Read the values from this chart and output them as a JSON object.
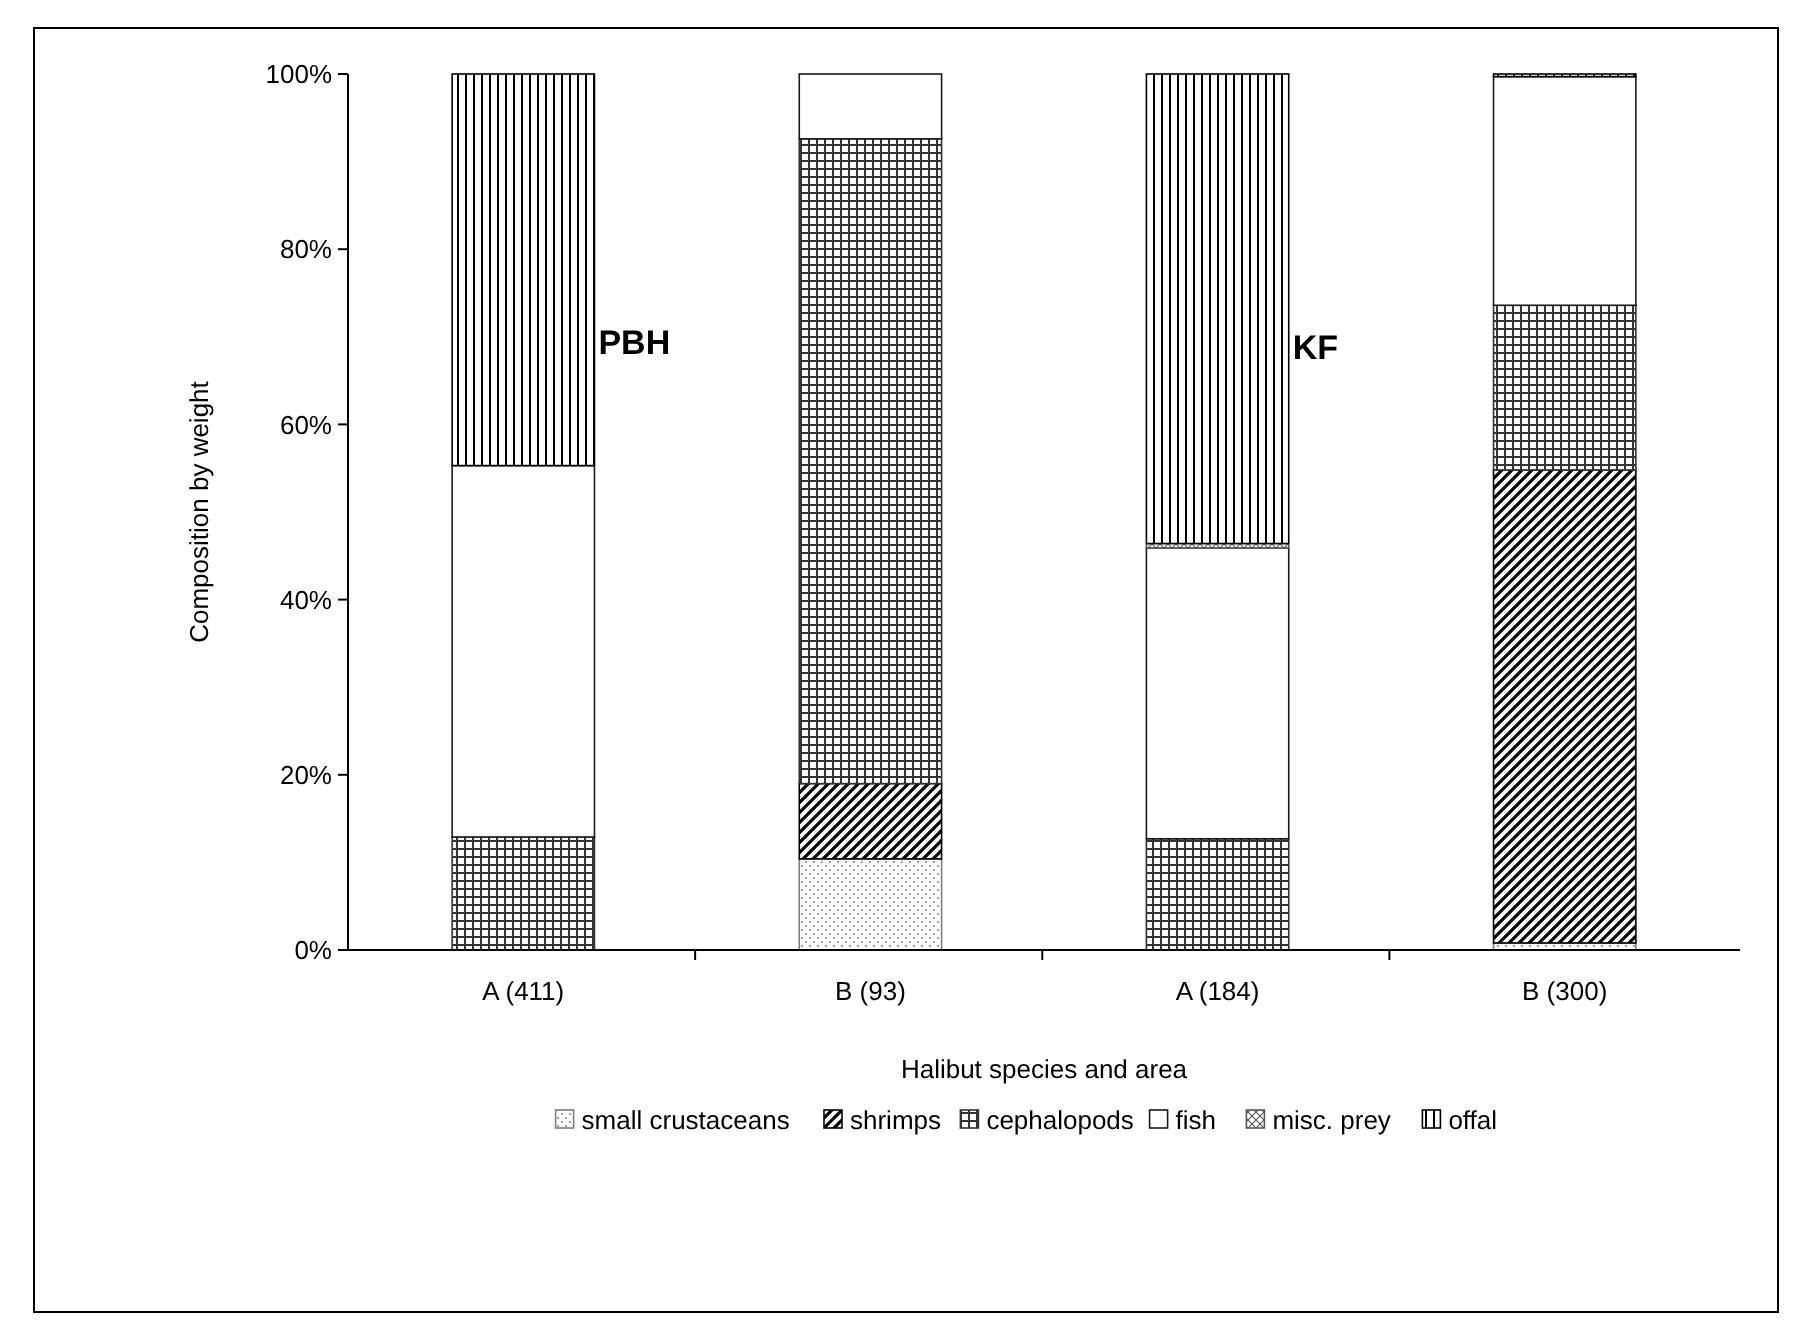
{
  "chart_data": {
    "type": "bar",
    "stacked": true,
    "xlabel": "Halibut species and area",
    "ylabel": "Composition by weight",
    "categories": [
      "A (411)",
      "B (93)",
      "A (184)",
      "B (300)"
    ],
    "series": [
      {
        "name": "small crustaceans",
        "color": "#7f7f7f",
        "values": [
          0,
          10.4,
          0,
          0.8
        ]
      },
      {
        "name": "shrimps",
        "color": "#000000",
        "values": [
          0,
          8.6,
          0,
          54.0
        ]
      },
      {
        "name": "cephalopods",
        "color": "#333333",
        "values": [
          12.9,
          73.6,
          12.7,
          18.8
        ]
      },
      {
        "name": "fish",
        "color": "#1a1a1a",
        "values": [
          42.4,
          7.4,
          33.2,
          26.1
        ]
      },
      {
        "name": "misc. prey",
        "color": "#595959",
        "values": [
          0,
          0,
          0.5,
          0
        ]
      },
      {
        "name": "offal",
        "color": "#000000",
        "values": [
          44.7,
          0,
          53.6,
          0.3
        ]
      }
    ],
    "ylim": [
      0,
      100
    ],
    "yticks": [
      {
        "value": 0,
        "label": "0%"
      },
      {
        "value": 20,
        "label": "20%"
      },
      {
        "value": 40,
        "label": "40%"
      },
      {
        "value": 60,
        "label": "60%"
      },
      {
        "value": 80,
        "label": "80%"
      },
      {
        "value": 100,
        "label": "100%"
      }
    ],
    "annotations": [
      "PBH",
      "KF"
    ],
    "legend": "bottom",
    "grid": false
  }
}
